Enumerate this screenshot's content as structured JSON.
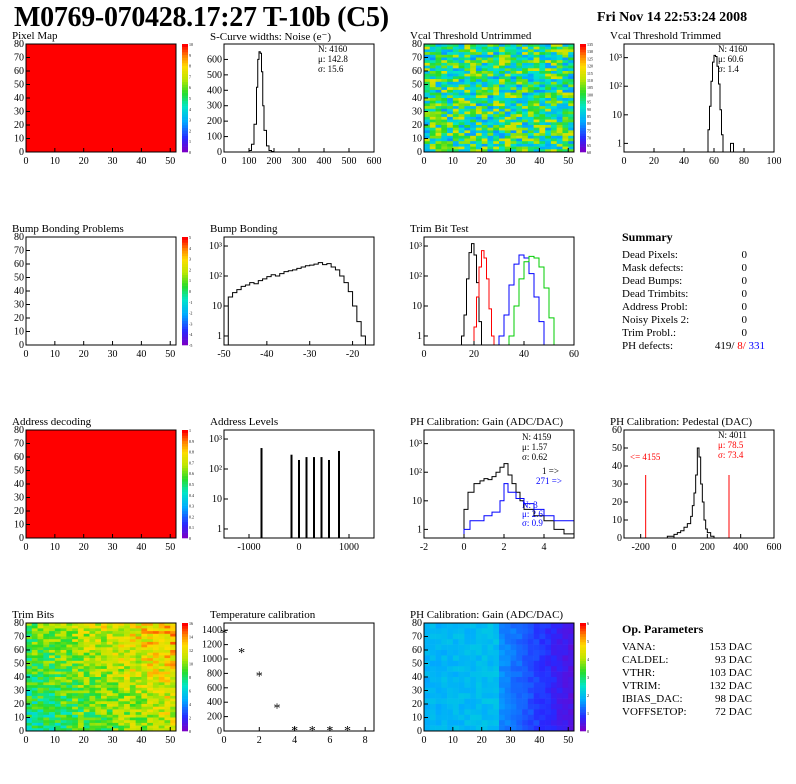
{
  "header": {
    "title": "M0769-070428.17:27 T-10b (C5)",
    "timestamp": "Fri Nov 14 22:53:24 2008"
  },
  "colors": {
    "red_hist": "#ff0000",
    "blue_hist": "#0000ff",
    "green_hist": "#00cc00",
    "black": "#000000"
  },
  "chart_data": [
    {
      "id": "pixel_map",
      "type": "heatmap",
      "title": "Pixel Map",
      "x_ticks": [
        "0",
        "10",
        "20",
        "30",
        "40",
        "50"
      ],
      "y_ticks": [
        "0",
        "10",
        "20",
        "30",
        "40",
        "50",
        "60",
        "70",
        "80"
      ],
      "z_ticks": [
        "0",
        "1",
        "2",
        "3",
        "4",
        "5",
        "6",
        "7",
        "8",
        "9",
        "10"
      ],
      "xlim": [
        0,
        52
      ],
      "ylim": [
        0,
        80
      ],
      "zlim": [
        0,
        10
      ],
      "fill": "uniform",
      "value": 10
    },
    {
      "id": "scurve_noise",
      "type": "line",
      "title": "S-Curve widths: Noise (e⁻)",
      "stats": [
        "N: 4160",
        "μ: 142.8",
        "σ: 15.6"
      ],
      "x_ticks": [
        "0",
        "100",
        "200",
        "300",
        "400",
        "500",
        "600"
      ],
      "y_ticks": [
        "0",
        "100",
        "200",
        "300",
        "400",
        "500",
        "600"
      ],
      "xlim": [
        0,
        600
      ],
      "ylim": [
        0,
        700
      ],
      "x": [
        0,
        90,
        100,
        110,
        120,
        130,
        135,
        140,
        145,
        150,
        155,
        160,
        170,
        180,
        190,
        200,
        600
      ],
      "y": [
        0,
        0,
        10,
        50,
        180,
        420,
        600,
        650,
        640,
        520,
        300,
        140,
        40,
        10,
        3,
        0,
        0
      ]
    },
    {
      "id": "vcal_untrimmed",
      "type": "heatmap",
      "title": "Vcal Threshold Untrimmed",
      "x_ticks": [
        "0",
        "10",
        "20",
        "30",
        "40",
        "50"
      ],
      "y_ticks": [
        "0",
        "10",
        "20",
        "30",
        "40",
        "50",
        "60",
        "70",
        "80"
      ],
      "z_ticks": [
        "60",
        "65",
        "70",
        "75",
        "80",
        "85",
        "90",
        "95",
        "100",
        "105",
        "110",
        "115",
        "120",
        "125",
        "130",
        "135"
      ],
      "xlim": [
        0,
        52
      ],
      "ylim": [
        0,
        80
      ],
      "zlim": [
        60,
        135
      ],
      "fill": "random_rows",
      "value": 97
    },
    {
      "id": "vcal_trimmed",
      "type": "line",
      "title": "Vcal Threshold Trimmed",
      "stats": [
        "N: 4160",
        "μ: 60.6",
        "σ:  1.4"
      ],
      "log_y": true,
      "x_ticks": [
        "0",
        "20",
        "40",
        "60",
        "80",
        "100"
      ],
      "y_ticks": [
        "1",
        "10",
        "10²",
        "10³"
      ],
      "xlim": [
        0,
        100
      ],
      "ylim": [
        0.5,
        3000
      ],
      "x": [
        0,
        55,
        56,
        57,
        58,
        59,
        60,
        61,
        62,
        63,
        64,
        65,
        66,
        70,
        71,
        72,
        73,
        100
      ],
      "y": [
        0,
        0,
        3,
        20,
        150,
        700,
        1200,
        1100,
        500,
        120,
        15,
        2,
        0,
        0,
        1,
        1,
        0,
        0
      ]
    },
    {
      "id": "bump_problems",
      "type": "heatmap",
      "title": "Bump Bonding Problems",
      "x_ticks": [
        "0",
        "10",
        "20",
        "30",
        "40",
        "50"
      ],
      "y_ticks": [
        "0",
        "10",
        "20",
        "30",
        "40",
        "50",
        "60",
        "70",
        "80"
      ],
      "z_ticks": [
        "-5",
        "-4",
        "-3",
        "-2",
        "-1",
        "0",
        "1",
        "2",
        "3",
        "4",
        "5"
      ],
      "xlim": [
        0,
        52
      ],
      "ylim": [
        0,
        80
      ],
      "zlim": [
        -5,
        5
      ],
      "fill": "empty",
      "value": 0
    },
    {
      "id": "bump_bonding",
      "type": "line",
      "title": "Bump Bonding",
      "log_y": true,
      "x_ticks": [
        "-50",
        "-40",
        "-30",
        "-20"
      ],
      "y_ticks": [
        "1",
        "10",
        "10²",
        "10³"
      ],
      "xlim": [
        -50,
        -15
      ],
      "ylim": [
        0.5,
        2000
      ],
      "x": [
        -50,
        -49,
        -48,
        -47,
        -46,
        -45,
        -44,
        -43,
        -42,
        -41,
        -40,
        -39,
        -38,
        -37,
        -36,
        -35,
        -34,
        -33,
        -32,
        -31,
        -30,
        -29,
        -28,
        -27,
        -26,
        -25,
        -24,
        -23,
        -22,
        -21,
        -20,
        -19,
        -18,
        -17,
        -15
      ],
      "y": [
        0,
        20,
        28,
        35,
        45,
        50,
        60,
        55,
        70,
        80,
        95,
        110,
        100,
        120,
        140,
        150,
        160,
        180,
        200,
        220,
        230,
        250,
        280,
        240,
        260,
        200,
        160,
        100,
        60,
        30,
        10,
        3,
        1,
        0,
        0
      ]
    },
    {
      "id": "trim_bit_test",
      "type": "line",
      "title": "Trim Bit Test",
      "log_y": true,
      "x_ticks": [
        "0",
        "20",
        "40",
        "60"
      ],
      "y_ticks": [
        "1",
        "10",
        "10²",
        "10³"
      ],
      "xlim": [
        0,
        60
      ],
      "ylim": [
        0.5,
        2000
      ],
      "series": [
        {
          "color": "#000000",
          "x": [
            14,
            15,
            16,
            17,
            18,
            19,
            20,
            21,
            22,
            23
          ],
          "y": [
            0,
            1,
            5,
            80,
            600,
            1200,
            500,
            60,
            3,
            0
          ]
        },
        {
          "color": "#ff0000",
          "x": [
            19,
            20,
            21,
            22,
            23,
            24,
            25,
            26,
            27,
            28
          ],
          "y": [
            0,
            2,
            20,
            200,
            700,
            400,
            80,
            8,
            1,
            0
          ]
        },
        {
          "color": "#0000ff",
          "x": [
            28,
            30,
            32,
            34,
            36,
            38,
            40,
            42,
            44,
            46,
            48
          ],
          "y": [
            0,
            1,
            5,
            50,
            250,
            500,
            400,
            120,
            20,
            3,
            0
          ]
        },
        {
          "color": "#00cc00",
          "x": [
            32,
            34,
            36,
            38,
            40,
            42,
            44,
            46,
            48,
            50,
            52
          ],
          "y": [
            0,
            1,
            10,
            80,
            300,
            450,
            400,
            200,
            40,
            4,
            0
          ]
        }
      ]
    },
    {
      "id": "address_decoding",
      "type": "heatmap",
      "title": "Address decoding",
      "x_ticks": [
        "0",
        "10",
        "20",
        "30",
        "40",
        "50"
      ],
      "y_ticks": [
        "0",
        "10",
        "20",
        "30",
        "40",
        "50",
        "60",
        "70",
        "80"
      ],
      "z_ticks": [
        "0",
        "0.1",
        "0.2",
        "0.3",
        "0.4",
        "0.5",
        "0.6",
        "0.7",
        "0.8",
        "0.9",
        "1"
      ],
      "xlim": [
        0,
        52
      ],
      "ylim": [
        0,
        80
      ],
      "zlim": [
        0,
        1
      ],
      "fill": "uniform",
      "value": 1
    },
    {
      "id": "address_levels",
      "type": "line",
      "title": "Address Levels",
      "log_y": true,
      "x_ticks": [
        "-1000",
        "0",
        "1000"
      ],
      "y_ticks": [
        "1",
        "10",
        "10²",
        "10³"
      ],
      "xlim": [
        -1500,
        1500
      ],
      "ylim": [
        0.5,
        2000
      ],
      "spikes": [
        {
          "x": -750,
          "y": 500
        },
        {
          "x": -150,
          "y": 300
        },
        {
          "x": 0,
          "y": 200
        },
        {
          "x": 150,
          "y": 250
        },
        {
          "x": 300,
          "y": 250
        },
        {
          "x": 450,
          "y": 250
        },
        {
          "x": 600,
          "y": 200
        },
        {
          "x": 800,
          "y": 400
        }
      ]
    },
    {
      "id": "ph_gain",
      "type": "line",
      "title": "PH Calibration: Gain (ADC/DAC)",
      "log_y": true,
      "stats_black": [
        "N: 4159",
        "μ: 1.57",
        "σ: 0.62"
      ],
      "overflow_labels": [
        "1 =>",
        "271 =>"
      ],
      "stats_blue": [
        "N: 3",
        "μ: 2.6",
        "σ: 0.9"
      ],
      "x_ticks": [
        "-2",
        "0",
        "2",
        "4"
      ],
      "y_ticks": [
        "1",
        "10",
        "10²",
        "10³"
      ],
      "xlim": [
        -2,
        5.5
      ],
      "ylim": [
        0.5,
        3000
      ],
      "series": [
        {
          "color": "#000000",
          "x": [
            -2,
            -0.2,
            0,
            0.2,
            0.5,
            0.8,
            1.0,
            1.2,
            1.4,
            1.6,
            1.8,
            2.0,
            2.2,
            2.4,
            2.6,
            2.8,
            3.0,
            3.5,
            4.0,
            4.5,
            5.0,
            5.5
          ],
          "y": [
            0,
            0,
            5,
            20,
            40,
            50,
            60,
            55,
            70,
            100,
            150,
            200,
            80,
            40,
            20,
            10,
            5,
            3,
            2,
            1,
            0.7,
            0
          ]
        },
        {
          "color": "#0000ff",
          "x": [
            -2,
            -0.5,
            0,
            0.3,
            0.6,
            1.0,
            1.4,
            1.8,
            2.0,
            2.2,
            2.6,
            3.0,
            3.5,
            4.0,
            4.5,
            5.0,
            5.5
          ],
          "y": [
            0,
            0,
            1,
            2,
            2,
            3,
            4,
            10,
            40,
            20,
            12,
            8,
            5,
            3,
            2,
            2,
            0
          ]
        }
      ]
    },
    {
      "id": "ph_pedestal",
      "type": "line",
      "title": "PH Calibration: Pedestal (DAC)",
      "stats": [
        "N: 4011",
        "μ: 78.5",
        "σ: 73.4"
      ],
      "stats_colors": [
        "#000000",
        "#ff0000",
        "#ff0000"
      ],
      "underflow_label": "<= 4155",
      "x_ticks": [
        "-200",
        "0",
        "200",
        "400",
        "600"
      ],
      "y_ticks": [
        "0",
        "10",
        "20",
        "30",
        "40",
        "50",
        "60"
      ],
      "xlim": [
        -300,
        600
      ],
      "ylim": [
        0,
        60
      ],
      "x": [
        -300,
        -80,
        -40,
        0,
        20,
        40,
        60,
        80,
        100,
        110,
        120,
        130,
        140,
        150,
        160,
        170,
        180,
        190,
        200,
        220,
        240,
        600
      ],
      "y": [
        0,
        0,
        1,
        2,
        3,
        4,
        6,
        8,
        12,
        18,
        25,
        35,
        50,
        45,
        30,
        20,
        10,
        5,
        3,
        1,
        0,
        0
      ],
      "cut_lines_x": [
        -170,
        330
      ],
      "cut_lines_h": [
        35,
        35
      ]
    },
    {
      "id": "trim_bits",
      "type": "heatmap",
      "title": "Trim Bits",
      "x_ticks": [
        "0",
        "10",
        "20",
        "30",
        "40",
        "50"
      ],
      "y_ticks": [
        "0",
        "10",
        "20",
        "30",
        "40",
        "50",
        "60",
        "70",
        "80"
      ],
      "z_ticks": [
        "0",
        "2",
        "4",
        "6",
        "8",
        "10",
        "12",
        "14",
        "16"
      ],
      "xlim": [
        0,
        52
      ],
      "ylim": [
        0,
        80
      ],
      "zlim": [
        0,
        16
      ],
      "fill": "gradient_xy",
      "value": 9
    },
    {
      "id": "temperature_calibration",
      "type": "scatter",
      "title": "Temperature calibration",
      "x_ticks": [
        "0",
        "2",
        "4",
        "6",
        "8"
      ],
      "y_ticks": [
        "0",
        "200",
        "400",
        "600",
        "800",
        "1000",
        "1200",
        "1400"
      ],
      "xlim": [
        0,
        8.5
      ],
      "ylim": [
        0,
        1500
      ],
      "x": [
        0,
        1,
        2,
        3,
        4,
        5,
        6,
        7
      ],
      "y": [
        1350,
        1080,
        760,
        310,
        0,
        0,
        0,
        0
      ]
    },
    {
      "id": "ph_gain_map",
      "type": "heatmap",
      "title": "PH Calibration: Gain (ADC/DAC)",
      "x_ticks": [
        "0",
        "10",
        "20",
        "30",
        "40",
        "50"
      ],
      "y_ticks": [
        "0",
        "10",
        "20",
        "30",
        "40",
        "50",
        "60",
        "70",
        "80"
      ],
      "z_ticks": [
        "0",
        "1",
        "2",
        "3",
        "4",
        "5",
        "6"
      ],
      "xlim": [
        0,
        52
      ],
      "ylim": [
        0,
        80
      ],
      "zlim": [
        0,
        6
      ],
      "fill": "gradient_x",
      "value": 2
    }
  ],
  "summary": {
    "title": "Summary",
    "rows": [
      {
        "label": "Dead Pixels:",
        "value": "0"
      },
      {
        "label": "Mask defects:",
        "value": "0"
      },
      {
        "label": "Dead Bumps:",
        "value": "0"
      },
      {
        "label": "Dead Trimbits:",
        "value": "0"
      },
      {
        "label": "Address Probl:",
        "value": "0"
      },
      {
        "label": "Noisy Pixels 2:",
        "value": "0"
      },
      {
        "label": "Trim Probl.:",
        "value": "0"
      }
    ],
    "ph_label": "PH defects:",
    "ph_values": [
      "419/",
      "8/",
      "331"
    ]
  },
  "op_params": {
    "title": "Op. Parameters",
    "rows": [
      {
        "label": "VANA:",
        "value": "153 DAC"
      },
      {
        "label": "CALDEL:",
        "value": "93 DAC"
      },
      {
        "label": "VTHR:",
        "value": "103 DAC"
      },
      {
        "label": "VTRIM:",
        "value": "132 DAC"
      },
      {
        "label": "IBIAS_DAC:",
        "value": "98 DAC"
      },
      {
        "label": "VOFFSETOP:",
        "value": "72 DAC"
      }
    ]
  }
}
